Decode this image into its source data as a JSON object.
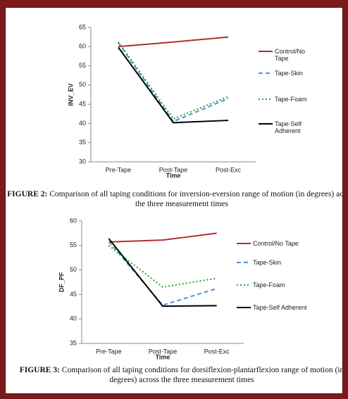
{
  "chart_data": [
    {
      "type": "line",
      "x_label": "Time",
      "y_label": "INV_EV",
      "categories": [
        "Pre-Tape",
        "Post-Tape",
        "Post-Exc"
      ],
      "ylim": [
        30,
        65
      ],
      "yticks": [
        30,
        35,
        40,
        45,
        50,
        55,
        60,
        65
      ],
      "legend": "right",
      "series": [
        {
          "name": "Control/No Tape",
          "color": "#b0312c",
          "style": "solid",
          "values": [
            60,
            61.2,
            62.5
          ]
        },
        {
          "name": "Tape-Skin",
          "color": "#4f8fe0",
          "style": "dashed",
          "values": [
            61,
            40.5,
            46.5
          ]
        },
        {
          "name": "Tape-Foam",
          "color": "#22a52a",
          "style": "dotted",
          "values": [
            61.2,
            41.2,
            47
          ]
        },
        {
          "name": "Tape-Self Adherent",
          "color": "#000000",
          "style": "solid",
          "values": [
            59.8,
            40.2,
            40.8
          ]
        }
      ],
      "caption_label": "FIGURE 2:",
      "caption": "Comparison of all taping conditions for inversion-eversion range of motion (in degrees) across the three measurement times"
    },
    {
      "type": "line",
      "x_label": "Time",
      "y_label": "DF_PF",
      "categories": [
        "Pre-Tape",
        "Post-Tape",
        "Post-Exc"
      ],
      "ylim": [
        35,
        60
      ],
      "yticks": [
        35,
        40,
        45,
        50,
        55,
        60
      ],
      "legend": "right",
      "series": [
        {
          "name": "Control/No Tape",
          "color": "#b0312c",
          "style": "solid",
          "values": [
            55.7,
            56.1,
            57.5
          ]
        },
        {
          "name": "Tape-Skin",
          "color": "#4f8fe0",
          "style": "dashed",
          "values": [
            55.8,
            42.8,
            46.2
          ]
        },
        {
          "name": "Tape-Foam",
          "color": "#22a52a",
          "style": "dotted",
          "values": [
            55,
            46.5,
            48.3
          ]
        },
        {
          "name": "Tape-Self Adherent",
          "color": "#000000",
          "style": "solid",
          "values": [
            56.4,
            42.6,
            42.7
          ]
        }
      ],
      "caption_label": "FIGURE 3:",
      "caption": "Comparison of all taping conditions for dorsiflexion-plantarflexion range of motion (in degrees) across the three measurement times"
    }
  ]
}
